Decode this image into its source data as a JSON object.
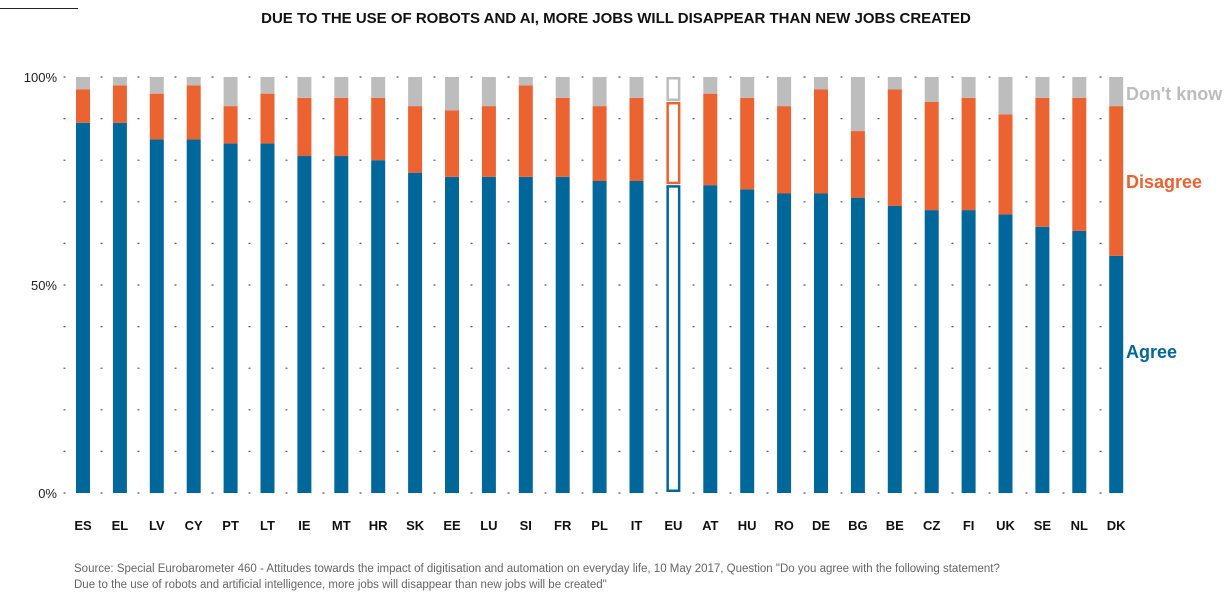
{
  "title": "DUE TO THE USE OF ROBOTS AND AI, MORE JOBS WILL DISAPPEAR THAN NEW JOBS CREATED",
  "source_line1": "Source: Special Eurobarometer 460 - Attitudes towards the impact of digitisation and automation on everyday life, 10 May 2017, Question \"Do you agree with the following statement?",
  "source_line2": "Due to the use of robots and artificial intelligence, more jobs will disappear than new jobs will be created\"",
  "colors": {
    "agree": "#00679a",
    "disagree": "#ea6331",
    "dont_know": "#bdbdbd"
  },
  "chart_data": {
    "type": "bar",
    "stacked": true,
    "categories": [
      "ES",
      "EL",
      "LV",
      "CY",
      "PT",
      "LT",
      "IE",
      "MT",
      "HR",
      "SK",
      "EE",
      "LU",
      "SI",
      "FR",
      "PL",
      "IT",
      "EU",
      "AT",
      "HU",
      "RO",
      "DE",
      "BG",
      "BE",
      "CZ",
      "FI",
      "UK",
      "SE",
      "NL",
      "DK"
    ],
    "series": [
      {
        "name": "Agree",
        "values": [
          89,
          89,
          85,
          85,
          84,
          84,
          81,
          81,
          80,
          77,
          76,
          76,
          76,
          76,
          75,
          75,
          74,
          74,
          73,
          72,
          72,
          71,
          69,
          68,
          68,
          67,
          64,
          63,
          57
        ]
      },
      {
        "name": "Disagree",
        "values": [
          8,
          9,
          11,
          13,
          9,
          12,
          14,
          14,
          15,
          16,
          16,
          17,
          22,
          19,
          18,
          20,
          20,
          22,
          22,
          21,
          25,
          16,
          28,
          26,
          27,
          24,
          31,
          32,
          36
        ]
      },
      {
        "name": "Don't know",
        "values": [
          3,
          2,
          4,
          2,
          7,
          4,
          5,
          5,
          5,
          7,
          8,
          7,
          2,
          5,
          7,
          5,
          6,
          4,
          5,
          7,
          3,
          13,
          3,
          6,
          5,
          9,
          5,
          5,
          7
        ]
      }
    ],
    "highlighted_category": "EU",
    "y_ticks": [
      "0%",
      "50%",
      "100%"
    ],
    "ylim": [
      0,
      100
    ],
    "legend_position": "right"
  }
}
